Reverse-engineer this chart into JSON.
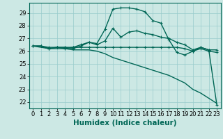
{
  "xlabel": "Humidex (Indice chaleur)",
  "bg_color": "#cce8e4",
  "grid_color": "#99cccc",
  "line_color": "#006655",
  "xlim": [
    -0.5,
    23.5
  ],
  "ylim": [
    21.5,
    29.8
  ],
  "yticks": [
    22,
    23,
    24,
    25,
    26,
    27,
    28,
    29
  ],
  "xticks": [
    0,
    1,
    2,
    3,
    4,
    5,
    6,
    7,
    8,
    9,
    10,
    11,
    12,
    13,
    14,
    15,
    16,
    17,
    18,
    19,
    20,
    21,
    22,
    23
  ],
  "line1_x": [
    0,
    1,
    2,
    3,
    4,
    5,
    6,
    7,
    8,
    9,
    10,
    11,
    12,
    13,
    14,
    15,
    16,
    17,
    18,
    19,
    20,
    21,
    22,
    23
  ],
  "line1_y": [
    26.4,
    26.4,
    26.2,
    26.3,
    26.2,
    26.3,
    26.5,
    26.7,
    26.6,
    27.7,
    29.3,
    29.4,
    29.4,
    29.3,
    29.1,
    28.4,
    28.2,
    26.9,
    25.9,
    25.7,
    26.0,
    26.3,
    26.1,
    21.8
  ],
  "line2_x": [
    0,
    1,
    2,
    3,
    4,
    5,
    6,
    7,
    8,
    9,
    10,
    11,
    12,
    13,
    14,
    15,
    16,
    17,
    18,
    19,
    20,
    21,
    22,
    23
  ],
  "line2_y": [
    26.4,
    26.4,
    26.2,
    26.3,
    26.3,
    26.2,
    26.4,
    26.7,
    26.5,
    26.8,
    27.8,
    27.1,
    27.5,
    27.6,
    27.4,
    27.3,
    27.1,
    27.0,
    26.7,
    26.5,
    26.1,
    26.3,
    26.1,
    26.1
  ],
  "line3_x": [
    0,
    1,
    2,
    3,
    4,
    5,
    6,
    7,
    8,
    9,
    10,
    11,
    12,
    13,
    14,
    15,
    16,
    17,
    18,
    19,
    20,
    21,
    22,
    23
  ],
  "line3_y": [
    26.4,
    26.4,
    26.3,
    26.3,
    26.3,
    26.3,
    26.3,
    26.3,
    26.3,
    26.3,
    26.3,
    26.3,
    26.3,
    26.3,
    26.3,
    26.3,
    26.3,
    26.3,
    26.3,
    26.2,
    26.0,
    26.2,
    26.0,
    25.9
  ],
  "line4_x": [
    0,
    1,
    2,
    3,
    4,
    5,
    6,
    7,
    8,
    9,
    10,
    11,
    12,
    13,
    14,
    15,
    16,
    17,
    18,
    19,
    20,
    21,
    22,
    23
  ],
  "line4_y": [
    26.4,
    26.3,
    26.2,
    26.2,
    26.2,
    26.1,
    26.1,
    26.1,
    26.0,
    25.8,
    25.5,
    25.3,
    25.1,
    24.9,
    24.7,
    24.5,
    24.3,
    24.1,
    23.8,
    23.5,
    23.0,
    22.7,
    22.3,
    21.9
  ],
  "marker": "+",
  "marker_size": 3,
  "line_width": 1.0,
  "tick_fontsize": 6,
  "xlabel_fontsize": 7.5
}
